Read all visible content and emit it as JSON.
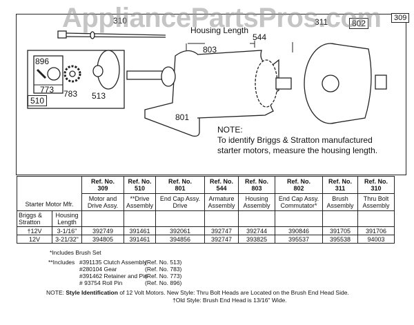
{
  "watermark": "AppliancePartsPros.com",
  "diagram": {
    "callouts": {
      "c310": "310",
      "c311": "311",
      "c802": "802",
      "c309": "309",
      "c896": "896",
      "c773": "773",
      "c510": "510",
      "c783": "783",
      "c513": "513",
      "c803": "803",
      "c544": "544",
      "c801": "801"
    },
    "housing_length_label": "Housing Length",
    "note_title": "NOTE:",
    "note_line1": "To identify Briggs & Stratton manufactured",
    "note_line2": "starter motors, measure the housing length."
  },
  "table": {
    "mfr_header": "Starter Motor Mfr.",
    "sub_headers": [
      "Briggs & Stratton",
      "Housing Length"
    ],
    "columns": [
      {
        "ref": "Ref. No.",
        "num": "309",
        "desc": "Motor and Drive Assy."
      },
      {
        "ref": "Ref. No.",
        "num": "510",
        "desc": "**Drive Assembly"
      },
      {
        "ref": "Ref. No.",
        "num": "801",
        "desc": "End Cap Assy. Drive"
      },
      {
        "ref": "Ref. No.",
        "num": "544",
        "desc": "Armature Assembly"
      },
      {
        "ref": "Ref. No.",
        "num": "803",
        "desc": "Housing Assembly"
      },
      {
        "ref": "Ref. No.",
        "num": "802",
        "desc": "End Cap Assy. Commutator*"
      },
      {
        "ref": "Ref. No.",
        "num": "311",
        "desc": "Brush Assembly"
      },
      {
        "ref": "Ref. No.",
        "num": "310",
        "desc": "Thru Bolt Assembly"
      }
    ],
    "rows": [
      {
        "mfr": "†12V",
        "length": "3-1/16\"",
        "values": [
          "392749",
          "391461",
          "392061",
          "392747",
          "392744",
          "390846",
          "391705",
          "391706"
        ]
      },
      {
        "mfr": "12V",
        "length": "3-21/32\"",
        "values": [
          "394805",
          "391461",
          "394856",
          "392747",
          "393825",
          "395537",
          "395538",
          "94003"
        ]
      }
    ]
  },
  "footnotes": {
    "brush": "*Includes Brush Set",
    "drive_prefix": "**Includes",
    "drive_items": [
      {
        "part": "#391135 Clutch Assembly",
        "ref": "(Ref. No. 513)"
      },
      {
        "part": "#280104 Gear",
        "ref": "(Ref. No. 783)"
      },
      {
        "part": "#391462 Retainer and Pin",
        "ref": "(Ref. No. 773)"
      },
      {
        "part": "# 93754 Roll Pin",
        "ref": "(Ref. No. 896)"
      }
    ],
    "note_prefix": "NOTE:",
    "note_bold": "Style Identification",
    "note_rest": "of 12 Volt Motors. New Style: Thru Bolt Heads are Located on the Brush End Head Side.",
    "note_line2": "†Old Style: Brush End Head is 13/16\" Wide."
  }
}
